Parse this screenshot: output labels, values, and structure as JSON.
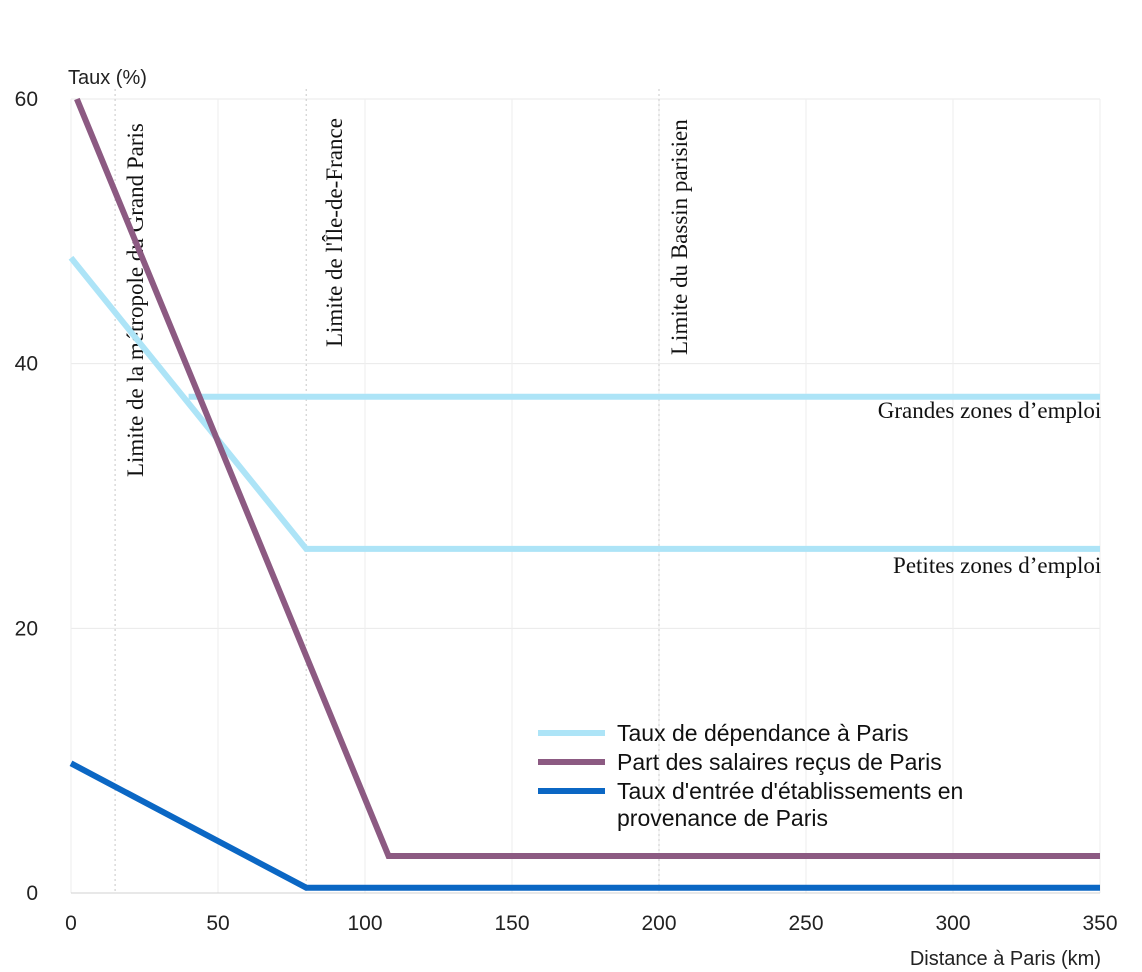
{
  "chart_data": {
    "type": "line",
    "ylabel": "Taux (%)",
    "xlabel": "Distance à Paris (km)",
    "xlim": [
      0,
      350
    ],
    "ylim": [
      0,
      60
    ],
    "x_ticks": [
      0,
      50,
      100,
      150,
      200,
      250,
      300,
      350
    ],
    "y_ticks": [
      0,
      20,
      40,
      60
    ],
    "grid": true,
    "series": [
      {
        "name": "Taux de dépendance à Paris",
        "color": "#ade4f7",
        "segments": [
          [
            [
              0,
              48
            ],
            [
              80,
              26
            ],
            [
              350,
              26
            ]
          ],
          [
            [
              40,
              37.5
            ],
            [
              350,
              37.5
            ]
          ]
        ]
      },
      {
        "name": "Part des salaires reçus de Paris",
        "color": "#8c5a82",
        "segments": [
          [
            [
              2,
              60
            ],
            [
              108,
              2.8
            ],
            [
              350,
              2.8
            ]
          ]
        ]
      },
      {
        "name": "Taux d'entrée d'établissements en provenance de Paris",
        "color": "#0b67c4",
        "segments": [
          [
            [
              0,
              9.8
            ],
            [
              80,
              0.4
            ],
            [
              350,
              0.4
            ]
          ]
        ]
      }
    ],
    "vertical_markers": [
      {
        "x": 15,
        "label": "Limite de la métropole du Grand Paris"
      },
      {
        "x": 80,
        "label": "Limite de l'Île-de-France"
      },
      {
        "x": 200,
        "label": "Limite du Bassin parisien"
      }
    ],
    "annotations": [
      {
        "text": "Grandes zones d’emploi",
        "x": 345,
        "y": 35.9
      },
      {
        "text": "Petites zones d’emploi",
        "x": 345,
        "y": 24.2
      }
    ],
    "legend": {
      "position": "bottom-right",
      "entries": [
        [
          "Taux de dépendance à Paris"
        ],
        [
          "Part des salaires reçus de Paris"
        ],
        [
          "Taux d'entrée d'établissements en",
          "provenance de Paris"
        ]
      ]
    }
  }
}
